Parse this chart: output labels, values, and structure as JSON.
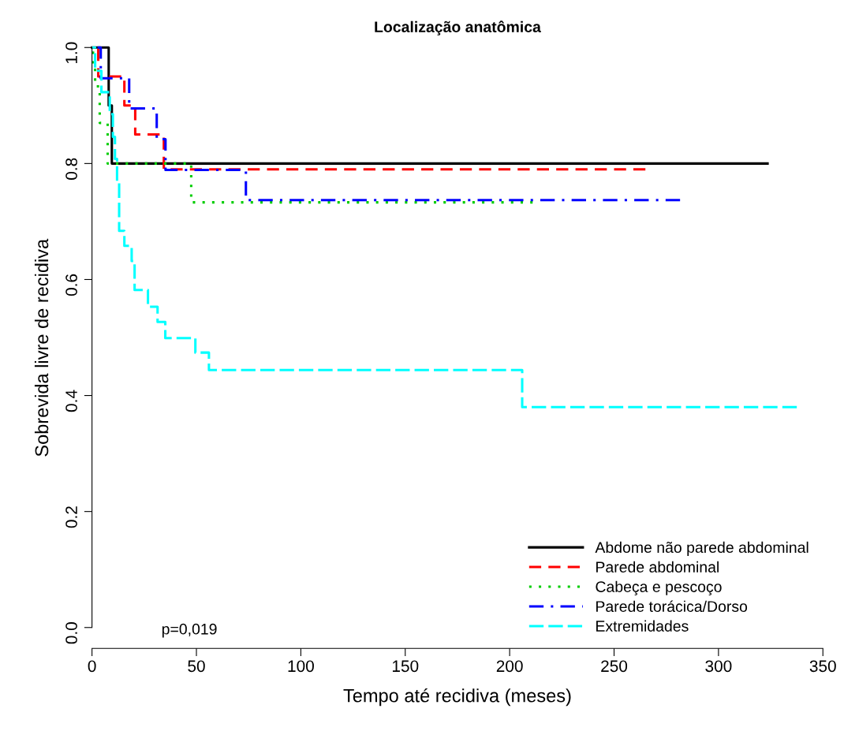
{
  "chart_data": {
    "type": "step",
    "title": "Localização anatômica",
    "xlabel": "Tempo até recidiva (meses)",
    "ylabel": "Sobrevida livre de recidiva",
    "xlim": [
      0,
      350
    ],
    "ylim": [
      -0.036,
      1.0
    ],
    "xticks": [
      0,
      50,
      100,
      150,
      200,
      250,
      300,
      350
    ],
    "yticks": [
      {
        "value": 0,
        "label": "0.0"
      },
      0.2,
      0.4,
      0.6,
      0.8,
      {
        "value": 1,
        "label": "1.0"
      }
    ],
    "grid": false,
    "legend": "bottom right",
    "annotations": [
      "p=0,019"
    ],
    "series": [
      {
        "name": "Abdome não parede abdominal",
        "color": "#000000",
        "line_style": "solid",
        "x": [
          0,
          8,
          9.5,
          323.5
        ],
        "values": [
          1.0,
          0.9,
          0.8,
          0.8
        ]
      },
      {
        "name": "Parede abdominal",
        "color": "#ff0000",
        "line_style": "dashed",
        "x": [
          0,
          3,
          15.5,
          20.7,
          34.4,
          265
        ],
        "values": [
          1.0,
          0.95,
          0.9,
          0.85,
          0.79,
          0.79
        ]
      },
      {
        "name": "Cabeça e pescoço",
        "color": "#00cd00",
        "line_style": "dotted",
        "x": [
          0,
          0.5,
          1.5,
          3.7,
          7.5,
          47.5,
          211
        ],
        "values": [
          1.0,
          0.967,
          0.933,
          0.87,
          0.8,
          0.733,
          0.733
        ]
      },
      {
        "name": "Parede torácica/Dorso",
        "color": "#0000ff",
        "line_style": "dashdot",
        "x": [
          0,
          4.2,
          17.8,
          31,
          35.2,
          73.7,
          281.6
        ],
        "values": [
          1.0,
          0.947,
          0.895,
          0.842,
          0.789,
          0.737,
          0.737
        ]
      },
      {
        "name": "Extremidades",
        "color": "#00ffff",
        "line_style": "longdash",
        "x": [
          0,
          1.5,
          4.5,
          8.5,
          10,
          11,
          12,
          13,
          15.5,
          19,
          20.4,
          26.8,
          31.4,
          35.1,
          49.5,
          56,
          206,
          337.5
        ],
        "values": [
          1.0,
          0.96,
          0.923,
          0.885,
          0.846,
          0.808,
          0.77,
          0.684,
          0.658,
          0.632,
          0.582,
          0.553,
          0.527,
          0.499,
          0.474,
          0.444,
          0.38,
          0.38
        ]
      }
    ]
  }
}
